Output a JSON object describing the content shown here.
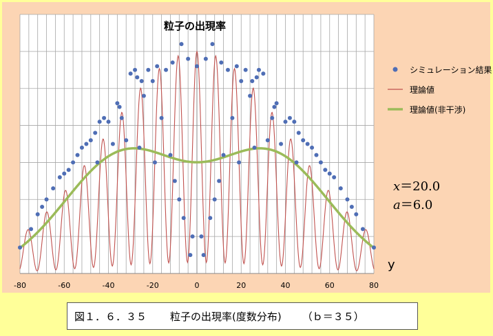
{
  "chart_data": {
    "type": "line",
    "title": "粒子の出現率",
    "xlabel": "y",
    "ylabel": "",
    "xlim": [
      -80,
      80
    ],
    "ylim": [
      0,
      70
    ],
    "x_ticks": [
      "-80",
      "-60",
      "-40",
      "-20",
      "0",
      "20",
      "40",
      "60",
      "80"
    ],
    "grid": true,
    "legend_position": "right",
    "series": [
      {
        "name": "シミュレーション結果",
        "style": "scatter",
        "color": "#4f6eb5",
        "x": [
          -80,
          -75,
          -72,
          -70,
          -68,
          -65,
          -62,
          -60,
          -58,
          -56,
          -54,
          -52,
          -50,
          -48,
          -46,
          -45,
          -44,
          -42,
          -40,
          -38,
          -36,
          -35,
          -34,
          -32,
          -30,
          -28,
          -27,
          -26,
          -25,
          -24,
          -22,
          -20,
          -19,
          -18,
          -16,
          -14,
          -12,
          -11,
          -10,
          -8,
          -7,
          -6,
          -4,
          -3,
          -2,
          0,
          2,
          3,
          4,
          6,
          7,
          8,
          10,
          11,
          12,
          14,
          16,
          18,
          19,
          20,
          22,
          24,
          25,
          26,
          27,
          28,
          30,
          32,
          34,
          35,
          36,
          38,
          40,
          42,
          44,
          45,
          46,
          48,
          50,
          52,
          54,
          56,
          58,
          60,
          62,
          65,
          68,
          70,
          72,
          75,
          80
        ],
        "y": [
          7,
          12,
          16,
          18,
          20,
          23,
          26,
          27,
          28,
          30,
          32,
          34,
          35,
          36,
          38,
          30,
          41,
          42,
          41,
          35,
          46,
          45,
          42,
          36,
          54,
          55,
          53,
          34,
          52,
          48,
          55,
          52,
          30,
          56,
          42,
          55,
          32,
          57,
          25,
          20,
          62,
          15,
          58,
          5,
          10,
          56,
          10,
          5,
          58,
          15,
          62,
          20,
          25,
          57,
          32,
          55,
          42,
          56,
          30,
          52,
          55,
          48,
          52,
          34,
          53,
          55,
          54,
          36,
          42,
          45,
          46,
          35,
          41,
          42,
          41,
          30,
          38,
          36,
          35,
          34,
          32,
          30,
          28,
          27,
          26,
          23,
          20,
          18,
          16,
          12,
          7
        ]
      },
      {
        "name": "理論値",
        "style": "line",
        "color": "#c0504d"
      },
      {
        "name": "理論値(非干渉)",
        "style": "line",
        "color": "#9bbb59"
      }
    ],
    "annotations": [
      "x=20.0",
      "a=6.0"
    ]
  },
  "params": {
    "x_label": "x",
    "x_value": "＝20.0",
    "a_label": "a",
    "a_value": "＝6.0"
  },
  "caption": {
    "figure": "図１．６．３５",
    "title": "粒子の出現率(度数分布)",
    "param": "（ｂ＝３５）"
  },
  "colors": {
    "background": "#ffff99",
    "panel": "#fcd5b4",
    "grid": "#a6a6a6"
  }
}
